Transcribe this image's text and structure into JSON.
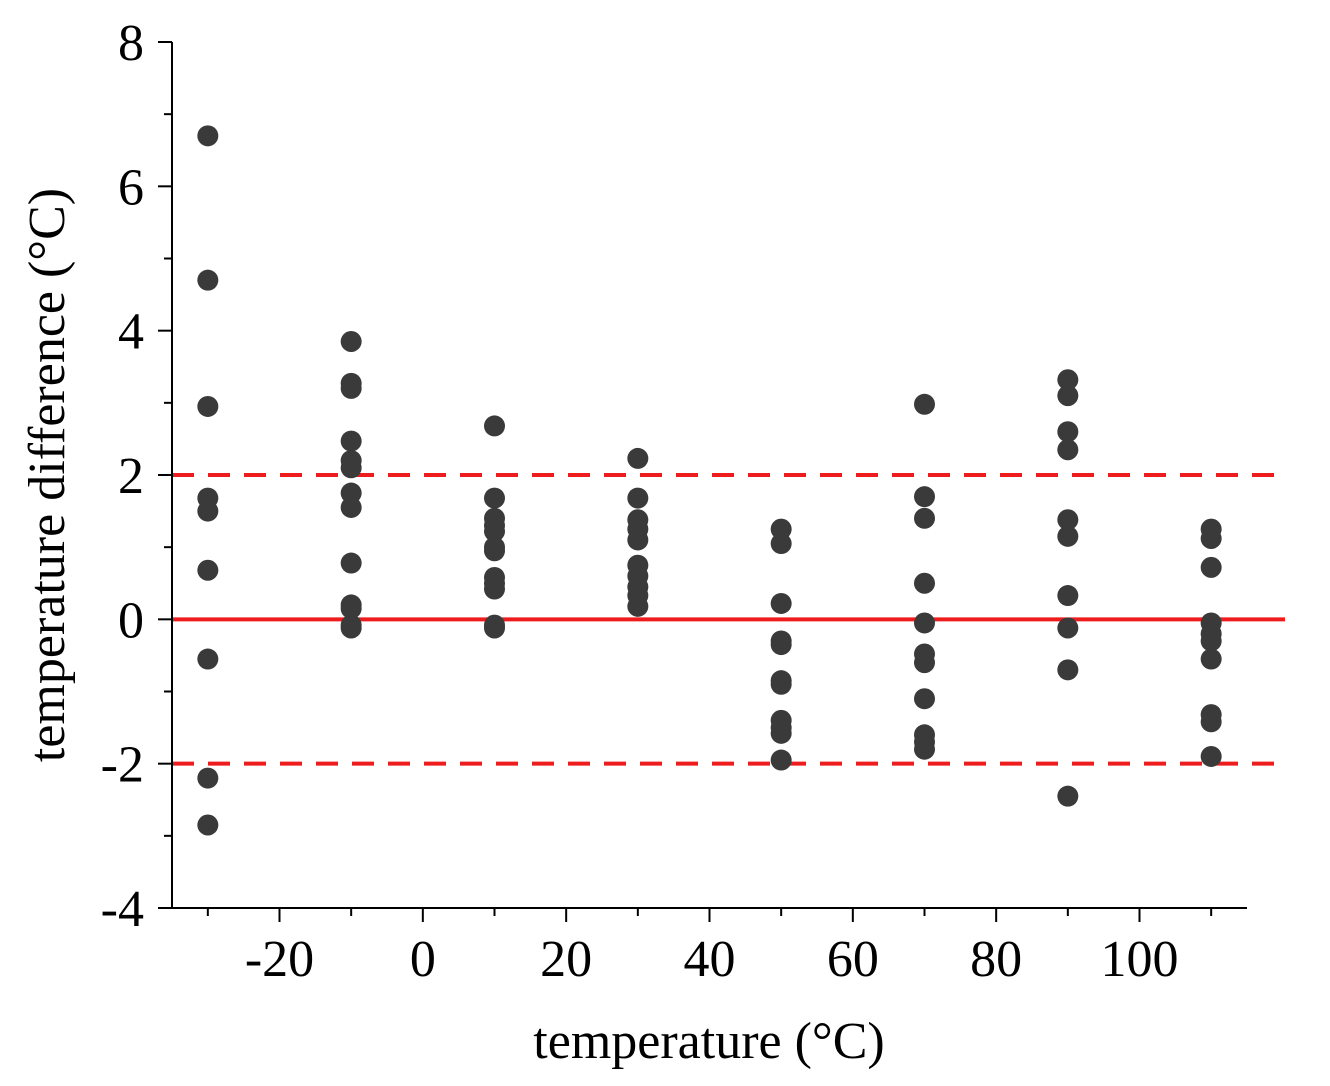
{
  "chart_data": {
    "type": "scatter",
    "title": "",
    "xlabel": "temperature (°C)",
    "ylabel": "temperature difference (°C)",
    "xlim": [
      -35,
      115
    ],
    "ylim": [
      -4,
      8
    ],
    "xticks": [
      -20,
      0,
      20,
      40,
      60,
      80,
      100
    ],
    "yticks": [
      -4,
      -2,
      0,
      2,
      4,
      6,
      8
    ],
    "xtick_labels": [
      "-20",
      "0",
      "20",
      "40",
      "60",
      "80",
      "100"
    ],
    "ytick_labels": [
      "-4",
      "-2",
      "0",
      "2",
      "4",
      "6",
      "8"
    ],
    "grid": false,
    "point_color": "#3a3a3a",
    "reference_lines": [
      {
        "y": 0,
        "style": "solid",
        "color": "#ee1c1c"
      },
      {
        "y": 2,
        "style": "dashed",
        "color": "#ee1c1c"
      },
      {
        "y": -2,
        "style": "dashed",
        "color": "#ee1c1c"
      }
    ],
    "series": [
      {
        "name": "-30",
        "x": -30,
        "y": [
          6.7,
          4.7,
          2.95,
          1.68,
          1.5,
          0.68,
          -0.55,
          -2.2,
          -2.85
        ]
      },
      {
        "name": "-10",
        "x": -10,
        "y": [
          3.85,
          3.27,
          3.2,
          2.47,
          2.2,
          2.1,
          1.75,
          1.55,
          0.78,
          0.2,
          0.15,
          -0.08,
          -0.12
        ]
      },
      {
        "name": "10",
        "x": 10,
        "y": [
          2.68,
          1.68,
          1.4,
          1.3,
          1.22,
          1.0,
          0.95,
          0.58,
          0.5,
          0.42,
          -0.08,
          -0.12
        ]
      },
      {
        "name": "30",
        "x": 30,
        "y": [
          2.23,
          1.68,
          1.38,
          1.25,
          1.1,
          0.75,
          0.6,
          0.45,
          0.33,
          0.18
        ]
      },
      {
        "name": "50",
        "x": 50,
        "y": [
          1.25,
          1.05,
          0.22,
          -0.3,
          -0.35,
          -0.85,
          -0.9,
          -1.4,
          -1.5,
          -1.58,
          -1.95
        ]
      },
      {
        "name": "70",
        "x": 70,
        "y": [
          2.98,
          1.7,
          1.4,
          0.5,
          -0.05,
          -0.48,
          -0.6,
          -1.1,
          -1.6,
          -1.7,
          -1.8
        ]
      },
      {
        "name": "90",
        "x": 90,
        "y": [
          3.32,
          3.1,
          2.6,
          2.35,
          1.38,
          1.15,
          0.33,
          -0.12,
          -0.7,
          -2.45
        ]
      },
      {
        "name": "110",
        "x": 110,
        "y": [
          1.25,
          1.12,
          0.72,
          -0.05,
          -0.2,
          -0.3,
          -0.55,
          -1.32,
          -1.42,
          -1.9
        ]
      }
    ]
  }
}
